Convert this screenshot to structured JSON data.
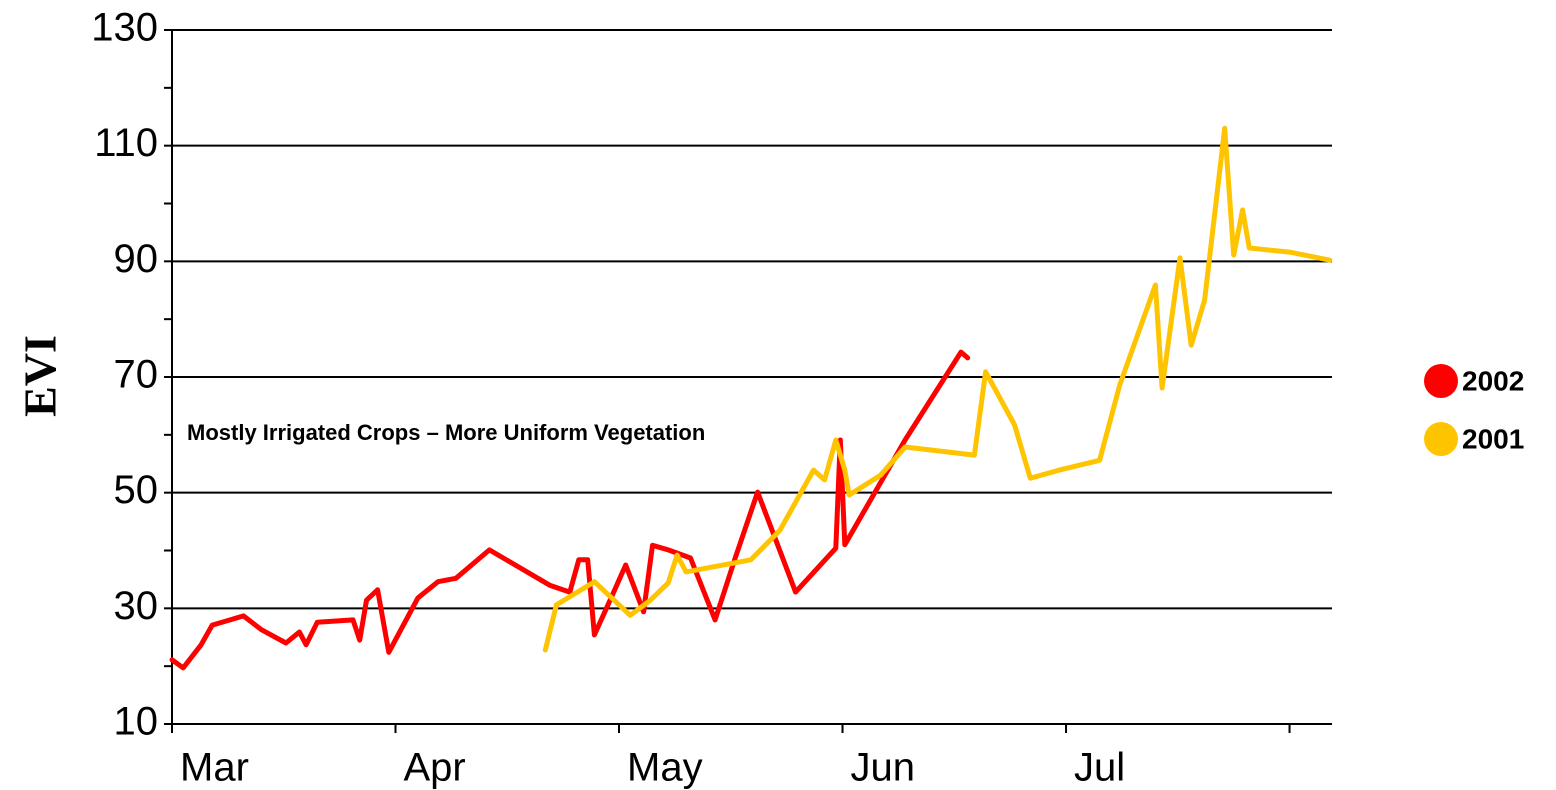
{
  "chart_data": {
    "type": "line",
    "ylabel": "EVI",
    "annotation": "Mostly Irrigated Crops – More Uniform Vegetation",
    "xlim": [
      0,
      5.19
    ],
    "xticks": [
      {
        "value": 0,
        "label": "Mar"
      },
      {
        "value": 1,
        "label": "Apr"
      },
      {
        "value": 2,
        "label": "May"
      },
      {
        "value": 3,
        "label": "Jun"
      },
      {
        "value": 4,
        "label": "Jul"
      },
      {
        "value": 5,
        "label": ""
      }
    ],
    "ylim": [
      10,
      130
    ],
    "yticks": [
      10,
      30,
      50,
      70,
      90,
      110,
      130
    ],
    "yminor_ticks": [
      20,
      40,
      60,
      80,
      100,
      120
    ],
    "grid": true,
    "legend": "right",
    "series": [
      {
        "name": "2002",
        "color": "#ff0000",
        "x": [
          0,
          0.05,
          0.13,
          0.18,
          0.26,
          0.32,
          0.4,
          0.51,
          0.57,
          0.6,
          0.65,
          0.81,
          0.84,
          0.87,
          0.92,
          0.97,
          1.1,
          1.19,
          1.27,
          1.42,
          1.69,
          1.78,
          1.82,
          1.86,
          1.89,
          1.96,
          2.03,
          2.11,
          2.15,
          2.22,
          2.32,
          2.43,
          2.52,
          2.62,
          2.79,
          2.97,
          2.99,
          3.01,
          3.28,
          3.53,
          3.56
        ],
        "values": [
          21.1,
          19.7,
          23.7,
          27.1,
          28.0,
          28.7,
          26.3,
          24.0,
          25.9,
          23.7,
          27.6,
          28.0,
          24.5,
          31.4,
          33.2,
          22.4,
          31.8,
          34.6,
          35.2,
          40.1,
          34.0,
          32.8,
          38.4,
          38.4,
          25.4,
          31.4,
          37.5,
          29.4,
          40.9,
          40.1,
          38.7,
          28.0,
          38.7,
          50.1,
          32.8,
          40.4,
          59.1,
          41.0,
          59.1,
          74.3,
          73.3
        ]
      },
      {
        "name": "2001",
        "color": "#ffc400",
        "x": [
          1.67,
          1.72,
          1.89,
          2.05,
          2.14,
          2.22,
          2.26,
          2.3,
          2.41,
          2.59,
          2.72,
          2.87,
          2.92,
          2.97,
          3.01,
          3.03,
          3.17,
          3.28,
          3.59,
          3.64,
          3.77,
          3.84,
          3.97,
          4.15,
          4.24,
          4.4,
          4.43,
          4.51,
          4.56,
          4.62,
          4.71,
          4.75,
          4.79,
          4.82,
          5.0,
          5.18
        ],
        "values": [
          22.8,
          30.6,
          34.6,
          28.8,
          31.4,
          34.4,
          39.2,
          36.3,
          37.1,
          38.4,
          43.5,
          53.9,
          52.2,
          59.1,
          53.9,
          49.6,
          53.0,
          57.9,
          56.5,
          70.9,
          61.7,
          52.5,
          53.9,
          55.6,
          68.6,
          85.9,
          68.1,
          90.6,
          75.5,
          83.3,
          113.0,
          91.1,
          98.9,
          92.3,
          91.6,
          90.2
        ]
      }
    ]
  }
}
